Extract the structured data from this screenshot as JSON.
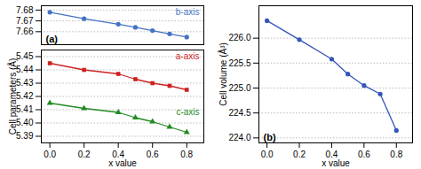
{
  "chart_data": [
    {
      "type": "line",
      "title": "(a)",
      "x": [
        0.0,
        0.2,
        0.4,
        0.5,
        0.6,
        0.7,
        0.8
      ],
      "series": [
        {
          "name": "b-axis",
          "color": "#4472c4",
          "marker": "circle",
          "values": [
            7.678,
            7.672,
            7.667,
            7.664,
            7.661,
            7.658,
            7.655
          ]
        }
      ],
      "xlim": [
        -0.05,
        0.9
      ],
      "ylim": [
        7.648,
        7.684
      ],
      "yticks": [
        7.66,
        7.67,
        7.68
      ],
      "grid": true,
      "tick_labels": "y"
    },
    {
      "type": "line",
      "x": [
        0.0,
        0.2,
        0.4,
        0.5,
        0.6,
        0.7,
        0.8
      ],
      "series": [
        {
          "name": "a-axis",
          "color": "#cc2222",
          "marker": "square",
          "values": [
            5.445,
            5.44,
            5.437,
            5.433,
            5.43,
            5.428,
            5.425
          ]
        },
        {
          "name": "c-axis",
          "color": "#228b22",
          "marker": "triangle",
          "values": [
            5.415,
            5.411,
            5.408,
            5.404,
            5.401,
            5.397,
            5.393
          ]
        }
      ],
      "xlabel": "x value",
      "ylabel": "Cell parameters (Å)",
      "xlim": [
        -0.05,
        0.9
      ],
      "xticks": [
        {
          "value": 0.0,
          "label": "0.0"
        },
        0.2,
        0.4,
        0.6,
        0.8
      ],
      "ylim": [
        5.385,
        5.455
      ],
      "yticks": [
        5.39,
        {
          "value": 5.4,
          "label": "5.40"
        },
        5.41,
        5.42,
        5.43,
        5.44,
        5.45
      ],
      "grid": true
    },
    {
      "type": "line",
      "title": "(b)",
      "x": [
        0.0,
        0.2,
        0.4,
        0.5,
        0.6,
        0.7,
        0.8
      ],
      "series": [
        {
          "name": "Cell volume",
          "color": "#3355bb",
          "marker": "circle",
          "values": [
            226.35,
            225.97,
            225.58,
            225.28,
            225.05,
            224.88,
            224.15
          ]
        }
      ],
      "xlabel": "x value",
      "ylabel": "Cell volume (Å³)",
      "xlim": [
        -0.05,
        0.9
      ],
      "xticks": [
        {
          "value": 0.0,
          "label": "0.0"
        },
        0.2,
        0.4,
        0.6,
        0.8
      ],
      "ylim": [
        223.9,
        226.65
      ],
      "yticks": [
        {
          "value": 224.0,
          "label": "224.0"
        },
        {
          "value": 224.5,
          "label": "224.5"
        },
        {
          "value": 225.0,
          "label": "225.0"
        },
        {
          "value": 225.5,
          "label": "225.5"
        },
        {
          "value": 226.0,
          "label": "226.0"
        }
      ],
      "grid": true
    }
  ]
}
